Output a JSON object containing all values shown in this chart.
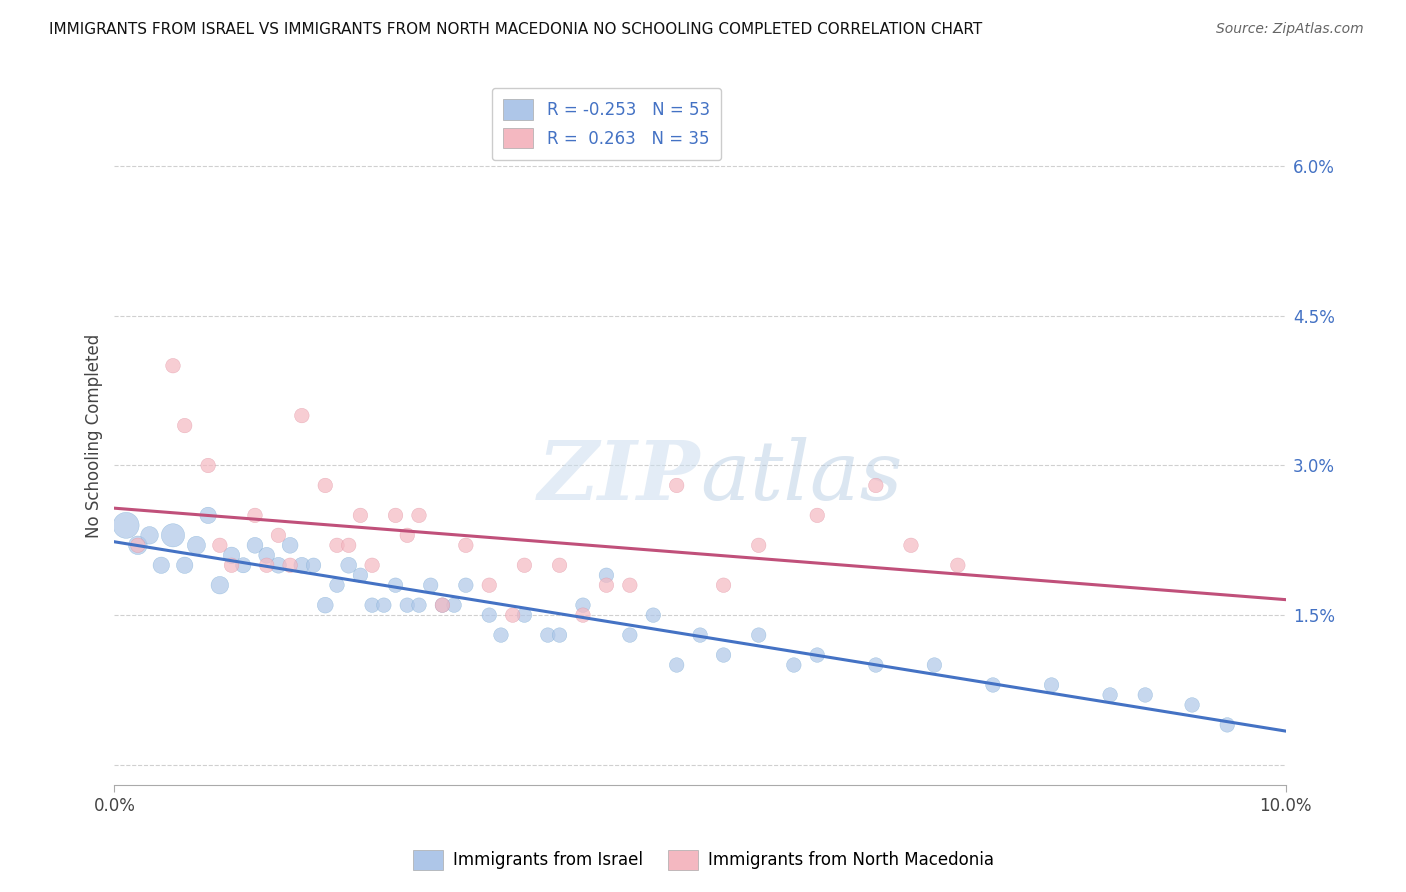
{
  "title": "IMMIGRANTS FROM ISRAEL VS IMMIGRANTS FROM NORTH MACEDONIA NO SCHOOLING COMPLETED CORRELATION CHART",
  "source": "Source: ZipAtlas.com",
  "ylabel": "No Schooling Completed",
  "xmin": 0.0,
  "xmax": 0.1,
  "ymin": -0.002,
  "ymax": 0.068,
  "yticks": [
    0.0,
    0.015,
    0.03,
    0.045,
    0.06
  ],
  "ytick_labels": [
    "",
    "1.5%",
    "3.0%",
    "4.5%",
    "6.0%"
  ],
  "grid_color": "#d0d0d0",
  "israel_color": "#aec6e8",
  "israel_edge_color": "#7aacd4",
  "israel_line_color": "#4472c4",
  "north_mac_color": "#f4b8c1",
  "north_mac_edge_color": "#e090a0",
  "north_mac_line_color": "#c0507a",
  "israel_R": -0.253,
  "israel_N": 53,
  "north_mac_R": 0.263,
  "north_mac_N": 35,
  "legend_israel": "Immigrants from Israel",
  "legend_north_mac": "Immigrants from North Macedonia",
  "israel_x": [
    0.001,
    0.002,
    0.003,
    0.004,
    0.005,
    0.006,
    0.007,
    0.008,
    0.009,
    0.01,
    0.011,
    0.012,
    0.013,
    0.014,
    0.015,
    0.016,
    0.017,
    0.018,
    0.019,
    0.02,
    0.021,
    0.022,
    0.023,
    0.024,
    0.025,
    0.026,
    0.027,
    0.028,
    0.029,
    0.03,
    0.032,
    0.033,
    0.035,
    0.037,
    0.038,
    0.04,
    0.042,
    0.044,
    0.046,
    0.048,
    0.05,
    0.052,
    0.055,
    0.058,
    0.06,
    0.065,
    0.07,
    0.075,
    0.08,
    0.085,
    0.088,
    0.092,
    0.095
  ],
  "israel_y": [
    0.024,
    0.022,
    0.023,
    0.02,
    0.023,
    0.02,
    0.022,
    0.025,
    0.018,
    0.021,
    0.02,
    0.022,
    0.021,
    0.02,
    0.022,
    0.02,
    0.02,
    0.016,
    0.018,
    0.02,
    0.019,
    0.016,
    0.016,
    0.018,
    0.016,
    0.016,
    0.018,
    0.016,
    0.016,
    0.018,
    0.015,
    0.013,
    0.015,
    0.013,
    0.013,
    0.016,
    0.019,
    0.013,
    0.015,
    0.01,
    0.013,
    0.011,
    0.013,
    0.01,
    0.011,
    0.01,
    0.01,
    0.008,
    0.008,
    0.007,
    0.007,
    0.006,
    0.004
  ],
  "israel_sizes": [
    350,
    180,
    160,
    140,
    280,
    140,
    170,
    140,
    160,
    140,
    120,
    130,
    130,
    130,
    130,
    130,
    110,
    130,
    110,
    130,
    110,
    110,
    110,
    110,
    110,
    110,
    110,
    110,
    110,
    110,
    110,
    110,
    110,
    110,
    110,
    110,
    110,
    110,
    110,
    110,
    110,
    110,
    110,
    110,
    110,
    110,
    110,
    110,
    110,
    110,
    110,
    110,
    110
  ],
  "north_mac_x": [
    0.002,
    0.005,
    0.006,
    0.008,
    0.009,
    0.01,
    0.012,
    0.013,
    0.014,
    0.015,
    0.016,
    0.018,
    0.019,
    0.02,
    0.021,
    0.022,
    0.024,
    0.025,
    0.026,
    0.028,
    0.03,
    0.032,
    0.034,
    0.035,
    0.038,
    0.04,
    0.042,
    0.044,
    0.048,
    0.052,
    0.055,
    0.06,
    0.065,
    0.068,
    0.072
  ],
  "north_mac_y": [
    0.022,
    0.04,
    0.034,
    0.03,
    0.022,
    0.02,
    0.025,
    0.02,
    0.023,
    0.02,
    0.035,
    0.028,
    0.022,
    0.022,
    0.025,
    0.02,
    0.025,
    0.023,
    0.025,
    0.016,
    0.022,
    0.018,
    0.015,
    0.02,
    0.02,
    0.015,
    0.018,
    0.018,
    0.028,
    0.018,
    0.022,
    0.025,
    0.028,
    0.022,
    0.02
  ],
  "north_mac_sizes": [
    110,
    110,
    110,
    110,
    110,
    110,
    110,
    110,
    110,
    110,
    110,
    110,
    110,
    110,
    110,
    110,
    110,
    110,
    110,
    110,
    110,
    110,
    110,
    110,
    110,
    110,
    110,
    110,
    110,
    110,
    110,
    110,
    110,
    110,
    110
  ]
}
